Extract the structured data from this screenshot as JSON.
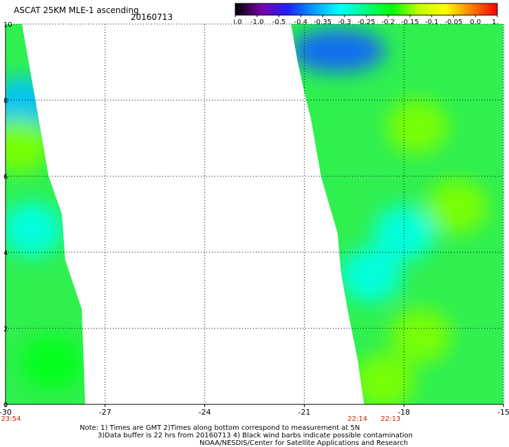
{
  "header": {
    "title": "ASCAT 25KM MLE-1 ascending",
    "date": "20160713"
  },
  "colors": {
    "grid": "#000000",
    "time_label": "#cc2200",
    "colorbar_stops": [
      "#000000",
      "#7a00a8",
      "#2020ff",
      "#00a0ff",
      "#00ffff",
      "#00ff80",
      "#00ff00",
      "#c0ff00",
      "#ffff00",
      "#ff8000",
      "#ff0000"
    ]
  },
  "colorbar": {
    "ticks": [
      "-3.0",
      "-1.0",
      "-0.5",
      "-0.4",
      "-0.35",
      "-0.3",
      "-0.25",
      "-0.2",
      "-0.15",
      "-0.1",
      "-0.05",
      "0.0",
      "1.0"
    ]
  },
  "notes": {
    "line1": "Note: 1) Times are GMT 2)Times along bottom correspond to measurement at 5N",
    "line2": "3)Data buffer is 22 hrs from 20160713 4) Black wind barbs indicate possible contamination",
    "line3": "NOAA/NESDIS/Center for Satellite Applications and Research"
  },
  "chart_data": {
    "type": "heatmap",
    "title": "ASCAT 25KM MLE-1 ascending",
    "xlim": [
      -30,
      -15
    ],
    "ylim": [
      0,
      10
    ],
    "x_ticks": [
      "-30",
      "-27",
      "-24",
      "-21",
      "-18",
      "-15"
    ],
    "y_ticks": [
      "0",
      "2",
      "4",
      "6",
      "8",
      "10"
    ],
    "grid": true,
    "time_labels": [
      {
        "lon": -30.0,
        "text": "23:54"
      },
      {
        "lon": -19.4,
        "text": "22:14"
      },
      {
        "lon": -18.4,
        "text": "22:13"
      }
    ],
    "swaths": [
      {
        "name": "left",
        "left_edge": [
          [
            0,
            -30.0
          ],
          [
            10,
            -30.0
          ]
        ],
        "right_edge": [
          [
            0,
            -27.6
          ],
          [
            2.5,
            -27.7
          ],
          [
            3.8,
            -28.2
          ],
          [
            5,
            -28.3
          ],
          [
            6,
            -28.7
          ],
          [
            7.5,
            -29.0
          ],
          [
            8.5,
            -29.2
          ],
          [
            9.5,
            -29.4
          ],
          [
            10,
            -29.5
          ]
        ]
      },
      {
        "name": "right",
        "left_edge": [
          [
            0,
            -19.2
          ],
          [
            1.2,
            -19.4
          ],
          [
            2.5,
            -19.7
          ],
          [
            3.5,
            -19.9
          ],
          [
            4.5,
            -20.0
          ],
          [
            6,
            -20.5
          ],
          [
            7.5,
            -20.8
          ],
          [
            8.2,
            -21.0
          ],
          [
            9,
            -21.2
          ],
          [
            10,
            -21.4
          ]
        ],
        "right_edge": [
          [
            0,
            -15.0
          ],
          [
            10,
            -15.0
          ]
        ]
      }
    ],
    "patches": [
      {
        "lon": -20.0,
        "lat": 9.3,
        "level": "-0.4"
      },
      {
        "lon": -29.5,
        "lat": 7.9,
        "level": "-0.35"
      },
      {
        "lon": -29.2,
        "lat": 4.6,
        "level": "-0.3"
      },
      {
        "lon": -19.0,
        "lat": 3.4,
        "level": "-0.3"
      },
      {
        "lon": -18.0,
        "lat": 4.5,
        "level": "-0.3"
      },
      {
        "lon": -29.6,
        "lat": 6.8,
        "level": "-0.15"
      },
      {
        "lon": -17.6,
        "lat": 7.3,
        "level": "-0.15"
      },
      {
        "lon": -16.4,
        "lat": 5.2,
        "level": "-0.15"
      },
      {
        "lon": -17.5,
        "lat": 1.8,
        "level": "-0.15"
      },
      {
        "lon": -18.6,
        "lat": 0.6,
        "level": "-0.15"
      },
      {
        "lon": -28.6,
        "lat": 1.1,
        "level": "-0.2"
      }
    ]
  }
}
